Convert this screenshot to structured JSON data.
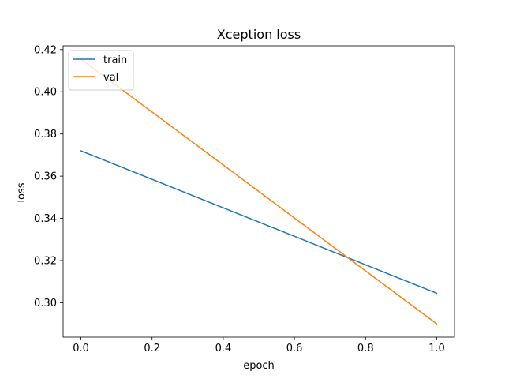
{
  "chart_data": {
    "type": "line",
    "title": "Xception loss",
    "xlabel": "epoch",
    "ylabel": "loss",
    "x": [
      0.0,
      1.0
    ],
    "series": [
      {
        "name": "train",
        "color": "#1f77b4",
        "values": [
          0.372,
          0.3045
        ]
      },
      {
        "name": "val",
        "color": "#ff7f0e",
        "values": [
          0.4155,
          0.29
        ]
      }
    ],
    "xlim": [
      -0.05,
      1.05
    ],
    "ylim": [
      0.2837,
      0.4218
    ],
    "xticks": [
      0.0,
      0.2,
      0.4,
      0.6,
      0.8,
      1.0
    ],
    "xtick_labels": [
      "0.0",
      "0.2",
      "0.4",
      "0.6",
      "0.8",
      "1.0"
    ],
    "yticks": [
      0.3,
      0.32,
      0.34,
      0.36,
      0.38,
      0.4,
      0.42
    ],
    "ytick_labels": [
      "0.30",
      "0.32",
      "0.34",
      "0.36",
      "0.38",
      "0.40",
      "0.42"
    ],
    "grid": false,
    "legend_position": "top-left"
  }
}
